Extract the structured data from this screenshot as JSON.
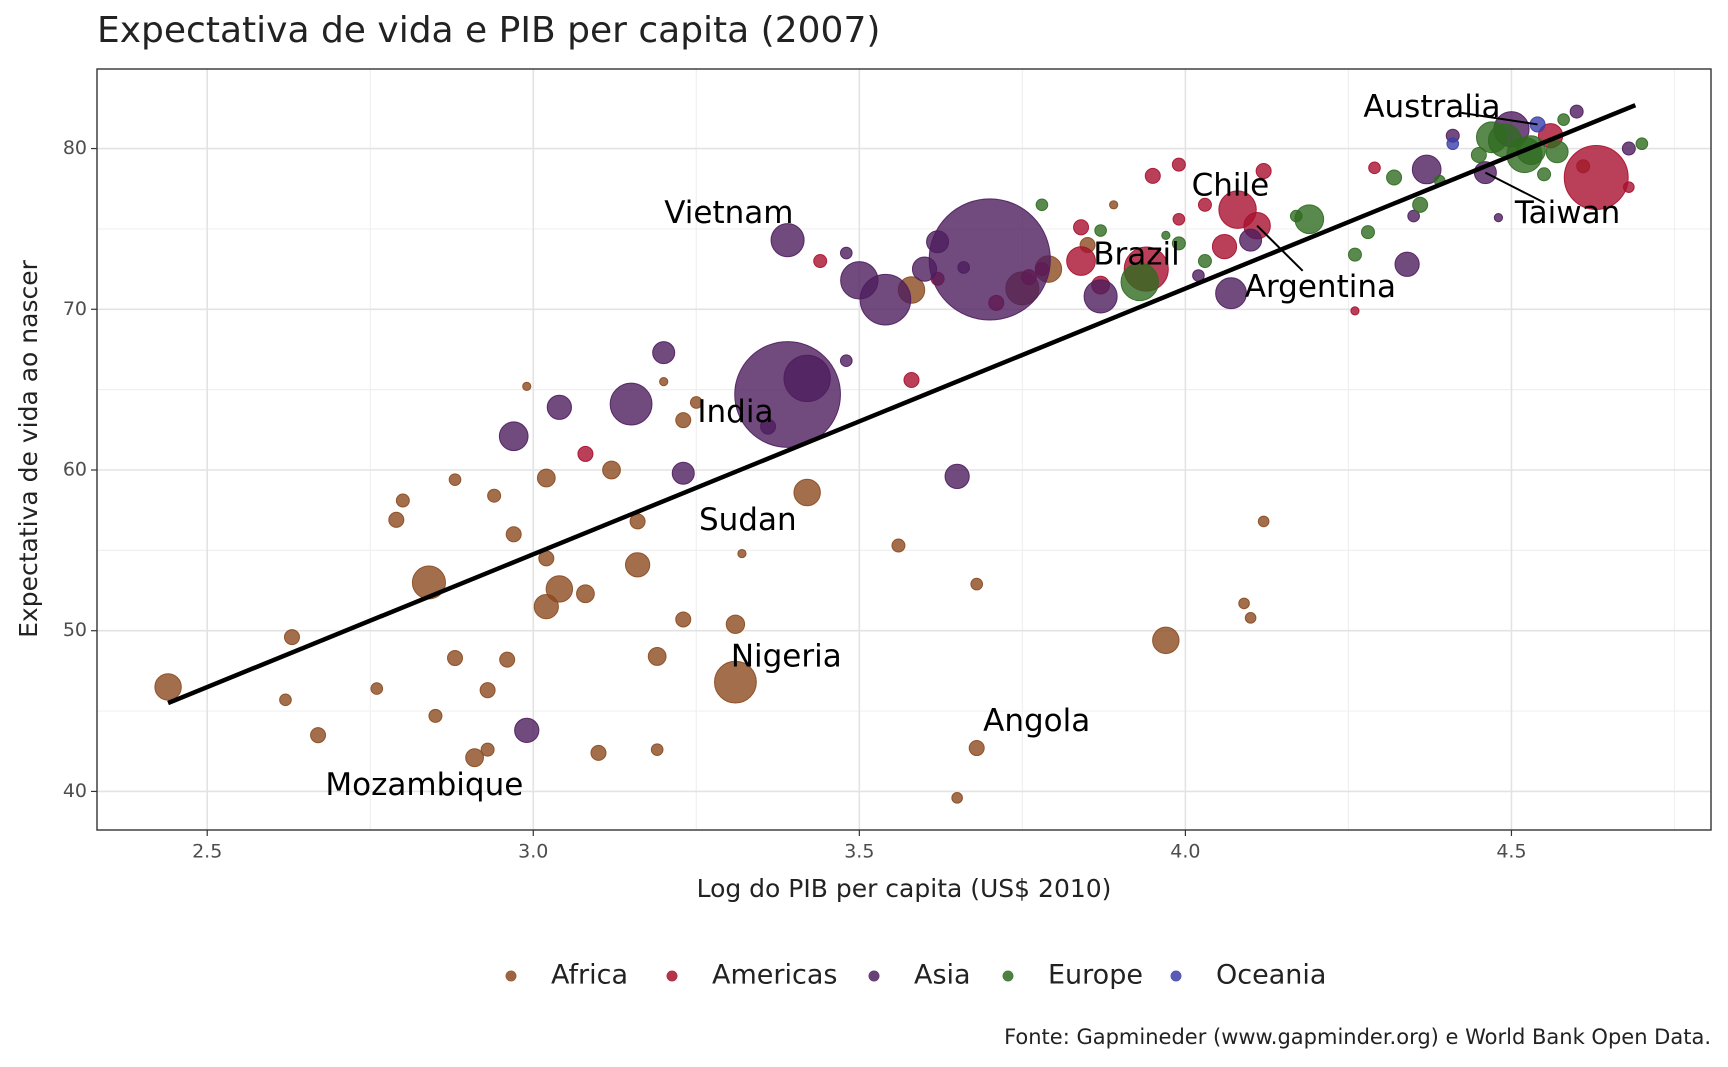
{
  "chart_data": {
    "type": "scatter",
    "title": "Expectativa de vida e PIB per capita (2007)",
    "x_label": "Log do PIB per capita (US$ 2010)",
    "y_label": "Expectativa de vida ao nascer",
    "caption": "Fonte: Gapmineder (www.gapminder.org) e World Bank Open Data.",
    "xlim": [
      2.331,
      4.806
    ],
    "ylim": [
      37.6,
      84.95
    ],
    "xticks": [
      {
        "value": 2.5,
        "label": "2.5"
      },
      {
        "value": 3,
        "label": "3.0"
      },
      {
        "value": 3.5,
        "label": "3.5"
      },
      {
        "value": 4,
        "label": "4.0"
      },
      {
        "value": 4.5,
        "label": "4.5"
      }
    ],
    "yticks": [
      40,
      50,
      60,
      70,
      80
    ],
    "grid": true,
    "legend": "bottom",
    "series": [
      {
        "name": "Africa",
        "color": "#8b4a1f",
        "x": [
          2.44,
          2.63,
          2.62,
          2.67,
          2.76,
          2.79,
          2.8,
          2.84,
          2.85,
          2.88,
          2.88,
          2.91,
          2.93,
          2.93,
          2.94,
          2.96,
          2.97,
          2.99,
          3.02,
          3.02,
          3.02,
          3.04,
          3.08,
          3.1,
          3.12,
          3.16,
          3.16,
          3.19,
          3.19,
          3.2,
          3.23,
          3.23,
          3.25,
          3.31,
          3.31,
          3.32,
          3.42,
          3.56,
          3.58,
          3.65,
          3.68,
          3.68,
          3.75,
          3.79,
          3.85,
          3.89,
          3.97,
          4.09,
          4.1,
          4.12,
          4.61
        ],
        "y": [
          46.5,
          49.6,
          45.7,
          43.5,
          46.4,
          56.9,
          58.1,
          53.0,
          44.7,
          59.4,
          48.3,
          42.1,
          42.6,
          46.3,
          58.4,
          48.2,
          56.0,
          65.2,
          59.5,
          54.5,
          51.5,
          52.6,
          52.3,
          42.4,
          60.0,
          56.8,
          54.1,
          48.4,
          42.6,
          65.5,
          50.7,
          63.1,
          64.2,
          46.8,
          50.4,
          54.8,
          58.6,
          55.3,
          71.2,
          39.6,
          42.7,
          52.9,
          71.3,
          72.5,
          74.0,
          76.5,
          49.4,
          51.7,
          50.8,
          56.8,
          78.9
        ],
        "size": [
          62,
          20,
          12,
          20,
          12,
          20,
          15,
          97,
          15,
          12,
          20,
          28,
          15,
          20,
          15,
          20,
          20,
          6,
          28,
          20,
          52,
          62,
          28,
          20,
          28,
          20,
          52,
          28,
          12,
          6,
          20,
          20,
          12,
          155,
          30,
          6,
          62,
          15,
          62,
          10,
          20,
          12,
          97,
          62,
          20,
          6,
          62,
          10,
          10,
          10,
          15
        ]
      },
      {
        "name": "Americas",
        "color": "#a8102e",
        "x": [
          3.08,
          3.44,
          3.58,
          3.62,
          3.71,
          3.76,
          3.78,
          3.84,
          3.84,
          3.87,
          3.95,
          3.94,
          3.99,
          3.99,
          4.03,
          4.06,
          4.08,
          4.11,
          4.12,
          4.26,
          4.29,
          4.56,
          4.63,
          4.68
        ],
        "y": [
          61.0,
          73.0,
          65.6,
          71.9,
          70.4,
          72.0,
          72.5,
          75.1,
          73.0,
          71.5,
          78.3,
          72.5,
          79.0,
          75.6,
          76.5,
          73.9,
          76.2,
          75.2,
          78.6,
          69.9,
          78.8,
          80.8,
          78.2,
          77.6
        ],
        "size": [
          20,
          15,
          20,
          15,
          20,
          20,
          15,
          20,
          73,
          28,
          20,
          172,
          15,
          12,
          15,
          52,
          124,
          62,
          20,
          6,
          12,
          52,
          362,
          10
        ]
      },
      {
        "name": "Asia",
        "color": "#4e1d5e",
        "x": [
          2.97,
          2.99,
          3.04,
          3.15,
          3.2,
          3.23,
          3.36,
          3.39,
          3.39,
          3.42,
          3.48,
          3.48,
          3.5,
          3.54,
          3.6,
          3.62,
          3.65,
          3.66,
          3.7,
          3.87,
          4.02,
          4.07,
          4.1,
          4.35,
          4.34,
          4.37,
          4.41,
          4.46,
          4.48,
          4.5,
          4.6,
          4.68
        ],
        "y": [
          62.1,
          43.8,
          63.9,
          64.1,
          67.3,
          59.8,
          62.7,
          64.7,
          74.3,
          65.7,
          73.5,
          66.8,
          71.8,
          70.6,
          72.5,
          74.2,
          59.6,
          72.6,
          73.1,
          70.8,
          72.1,
          71.0,
          74.3,
          75.8,
          72.8,
          78.7,
          80.8,
          78.5,
          75.7,
          81.2,
          82.3,
          80.0
        ],
        "size": [
          73,
          52,
          52,
          155,
          43,
          43,
          20,
          990,
          97,
          190,
          12,
          12,
          124,
          227,
          52,
          43,
          52,
          12,
          1300,
          97,
          12,
          84,
          43,
          12,
          52,
          73,
          15,
          43,
          6,
          110,
          15,
          15
        ]
      },
      {
        "name": "Europe",
        "color": "#2f6b20",
        "x": [
          3.78,
          3.87,
          3.93,
          3.97,
          3.99,
          4.03,
          4.17,
          4.19,
          4.26,
          4.28,
          4.32,
          4.36,
          4.39,
          4.45,
          4.47,
          4.49,
          4.52,
          4.53,
          4.55,
          4.57,
          4.58,
          4.7
        ],
        "y": [
          76.5,
          74.9,
          71.7,
          74.6,
          74.1,
          73.0,
          75.8,
          75.6,
          73.4,
          74.8,
          78.2,
          76.5,
          78.0,
          79.6,
          80.7,
          80.5,
          79.6,
          79.9,
          78.4,
          79.8,
          81.8,
          80.3
        ],
        "size": [
          12,
          12,
          124,
          6,
          15,
          15,
          12,
          73,
          15,
          15,
          20,
          20,
          10,
          20,
          84,
          97,
          110,
          73,
          15,
          43,
          12,
          12
        ]
      },
      {
        "name": "Oceania",
        "color": "#3b3fa8",
        "x": [
          4.41,
          4.54
        ],
        "y": [
          80.3,
          81.5
        ],
        "size": [
          12,
          20
        ]
      }
    ],
    "trend": {
      "color": "#000000",
      "x": [
        2.44,
        4.69
      ],
      "y": [
        45.5,
        82.7
      ]
    },
    "annotations": [
      {
        "text": "Mozambique",
        "x": 2.833,
        "y": 40.3
      },
      {
        "text": "Nigeria",
        "x": 3.388,
        "y": 48.3
      },
      {
        "text": "Angola",
        "x": 3.772,
        "y": 44.3
      },
      {
        "text": "Sudan",
        "x": 3.329,
        "y": 56.8
      },
      {
        "text": "India",
        "x": 3.31,
        "y": 63.5
      },
      {
        "text": "Vietnam",
        "x": 3.3,
        "y": 75.9
      },
      {
        "text": "Brazil",
        "x": 3.925,
        "y": 73.3
      },
      {
        "text": "Chile",
        "x": 4.069,
        "y": 77.6
      },
      {
        "text": "Argentina",
        "x": 4.207,
        "y": 71.3,
        "point": [
          4.11,
          75.2
        ]
      },
      {
        "text": "Australia",
        "x": 4.378,
        "y": 82.5,
        "point": [
          4.54,
          81.5
        ]
      },
      {
        "text": "Taiwan",
        "x": 4.586,
        "y": 75.9,
        "point": [
          4.46,
          78.5
        ]
      }
    ]
  }
}
